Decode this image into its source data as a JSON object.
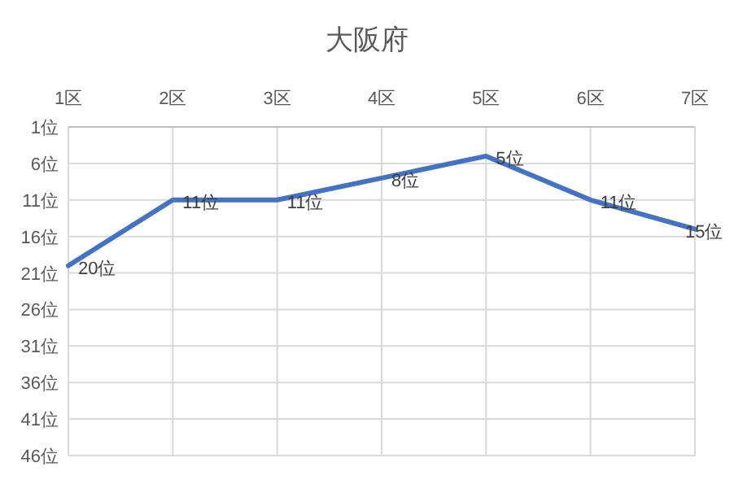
{
  "chart_data": {
    "type": "line",
    "title": "大阪府",
    "categories": [
      "1区",
      "2区",
      "3区",
      "4区",
      "5区",
      "6区",
      "7区"
    ],
    "series": [
      {
        "color": "#4472c4",
        "values": [
          20,
          11,
          11,
          8,
          5,
          11,
          15
        ],
        "value_labels": [
          "20位",
          "11位",
          "11位",
          "8位",
          "5位",
          "11位",
          "15位"
        ]
      }
    ],
    "ylim": [
      46,
      1
    ],
    "yticks": [
      {
        "value": 1,
        "label": "1位"
      },
      {
        "value": 6,
        "label": "6位"
      },
      {
        "value": 11,
        "label": "11位"
      },
      {
        "value": 16,
        "label": "16位"
      },
      {
        "value": 21,
        "label": "21位"
      },
      {
        "value": 26,
        "label": "26位"
      },
      {
        "value": 31,
        "label": "31位"
      },
      {
        "value": 36,
        "label": "36位"
      },
      {
        "value": 41,
        "label": "41位"
      },
      {
        "value": 46,
        "label": "46位"
      }
    ],
    "grid": true
  }
}
